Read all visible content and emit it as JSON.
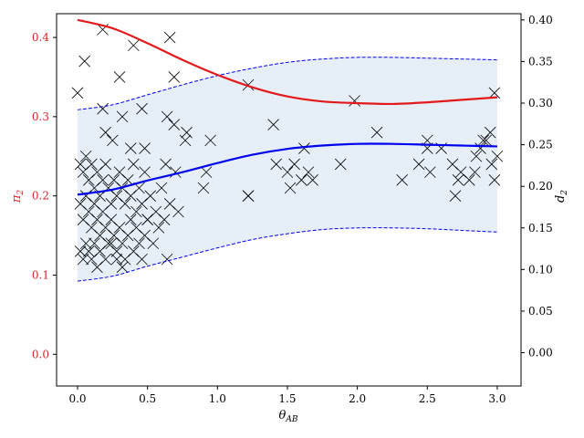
{
  "chart_data": {
    "type": "scatter",
    "xlabel": {
      "base": "θ",
      "sub": "AB"
    },
    "ylabel_left": {
      "base": "π",
      "sub": "2"
    },
    "ylabel_right": {
      "base": "d",
      "sub": "2"
    },
    "xlim": [
      -0.15,
      3.17
    ],
    "ylim_left": [
      -0.04,
      0.43
    ],
    "ylim_right": [
      -0.04,
      0.4075
    ],
    "xticks": [
      0.0,
      0.5,
      1.0,
      1.5,
      2.0,
      2.5,
      3.0
    ],
    "xtick_labels": [
      "0.0",
      "0.5",
      "1.0",
      "1.5",
      "2.0",
      "2.5",
      "3.0"
    ],
    "yticks_left": [
      0.0,
      0.1,
      0.2,
      0.3,
      0.4
    ],
    "ytick_labels_left": [
      "0.0",
      "0.1",
      "0.2",
      "0.3",
      "0.4"
    ],
    "yticks_right": [
      0.0,
      0.05,
      0.1,
      0.15,
      0.2,
      0.25,
      0.3,
      0.35,
      0.4
    ],
    "ytick_labels_right": [
      "0.00",
      "0.05",
      "0.10",
      "0.15",
      "0.20",
      "0.25",
      "0.30",
      "0.35",
      "0.40"
    ],
    "colors": {
      "left_axis": "#d62728",
      "red_line": "#e31a1c",
      "blue_line": "#0000ee",
      "band_fill": "#e6eef7",
      "marker": "#000000"
    },
    "grid": false,
    "series": [
      {
        "axis": "right",
        "kind": "line",
        "color": "red",
        "x": [
          0,
          0.25,
          0.5,
          0.75,
          1.0,
          1.25,
          1.5,
          1.75,
          2.0,
          2.25,
          2.5,
          2.75,
          3.0
        ],
        "y": [
          0.4,
          0.39,
          0.372,
          0.352,
          0.334,
          0.319,
          0.308,
          0.302,
          0.3,
          0.299,
          0.301,
          0.304,
          0.307
        ]
      },
      {
        "axis": "right",
        "kind": "line",
        "color": "blue",
        "x": [
          0,
          0.25,
          0.5,
          0.75,
          1.0,
          1.25,
          1.5,
          1.75,
          2.0,
          2.25,
          2.5,
          2.75,
          3.0
        ],
        "y": [
          0.19,
          0.196,
          0.207,
          0.217,
          0.228,
          0.238,
          0.245,
          0.249,
          0.251,
          0.251,
          0.25,
          0.249,
          0.248
        ]
      },
      {
        "axis": "right",
        "kind": "band-upper",
        "style": "dashed",
        "x": [
          0,
          0.25,
          0.5,
          0.75,
          1.0,
          1.25,
          1.5,
          1.75,
          2.0,
          2.25,
          2.5,
          2.75,
          3.0
        ],
        "y": [
          0.292,
          0.298,
          0.31,
          0.322,
          0.333,
          0.342,
          0.349,
          0.353,
          0.355,
          0.355,
          0.354,
          0.353,
          0.352
        ]
      },
      {
        "axis": "right",
        "kind": "band-lower",
        "style": "dashed",
        "x": [
          0,
          0.25,
          0.5,
          0.75,
          1.0,
          1.25,
          1.5,
          1.75,
          2.0,
          2.25,
          2.5,
          2.75,
          3.0
        ],
        "y": [
          0.086,
          0.092,
          0.104,
          0.115,
          0.126,
          0.136,
          0.143,
          0.148,
          0.15,
          0.15,
          0.149,
          0.147,
          0.145
        ]
      },
      {
        "axis": "left",
        "kind": "scatter",
        "marker": "x",
        "points": [
          [
            0.0,
            0.33
          ],
          [
            0.05,
            0.37
          ],
          [
            0.18,
            0.41
          ],
          [
            0.4,
            0.39
          ],
          [
            0.66,
            0.4
          ],
          [
            0.69,
            0.35
          ],
          [
            0.3,
            0.35
          ],
          [
            0.18,
            0.31
          ],
          [
            0.32,
            0.3
          ],
          [
            0.46,
            0.31
          ],
          [
            0.64,
            0.3
          ],
          [
            0.69,
            0.29
          ],
          [
            0.78,
            0.28
          ],
          [
            0.2,
            0.28
          ],
          [
            0.25,
            0.27
          ],
          [
            0.38,
            0.26
          ],
          [
            0.48,
            0.26
          ],
          [
            0.63,
            0.24
          ],
          [
            0.77,
            0.27
          ],
          [
            0.95,
            0.27
          ],
          [
            1.22,
            0.34
          ],
          [
            1.4,
            0.29
          ],
          [
            1.62,
            0.26
          ],
          [
            1.98,
            0.32
          ],
          [
            2.14,
            0.28
          ],
          [
            2.32,
            0.22
          ],
          [
            2.5,
            0.27
          ],
          [
            2.6,
            0.26
          ],
          [
            2.98,
            0.33
          ],
          [
            2.95,
            0.28
          ],
          [
            2.9,
            0.27
          ],
          [
            2.85,
            0.25
          ],
          [
            0.02,
            0.24
          ],
          [
            0.04,
            0.23
          ],
          [
            0.06,
            0.25
          ],
          [
            0.08,
            0.22
          ],
          [
            0.1,
            0.24
          ],
          [
            0.12,
            0.21
          ],
          [
            0.14,
            0.23
          ],
          [
            0.16,
            0.2
          ],
          [
            0.18,
            0.22
          ],
          [
            0.2,
            0.24
          ],
          [
            0.22,
            0.21
          ],
          [
            0.24,
            0.19
          ],
          [
            0.26,
            0.22
          ],
          [
            0.28,
            0.2
          ],
          [
            0.3,
            0.23
          ],
          [
            0.32,
            0.21
          ],
          [
            0.34,
            0.19
          ],
          [
            0.36,
            0.22
          ],
          [
            0.38,
            0.2
          ],
          [
            0.4,
            0.24
          ],
          [
            0.42,
            0.18
          ],
          [
            0.44,
            0.21
          ],
          [
            0.46,
            0.19
          ],
          [
            0.48,
            0.23
          ],
          [
            0.5,
            0.17
          ],
          [
            0.52,
            0.2
          ],
          [
            0.56,
            0.18
          ],
          [
            0.6,
            0.21
          ],
          [
            0.62,
            0.17
          ],
          [
            0.66,
            0.19
          ],
          [
            0.7,
            0.23
          ],
          [
            0.72,
            0.18
          ],
          [
            0.9,
            0.21
          ],
          [
            0.92,
            0.23
          ],
          [
            0.02,
            0.19
          ],
          [
            0.04,
            0.17
          ],
          [
            0.06,
            0.2
          ],
          [
            0.08,
            0.18
          ],
          [
            0.1,
            0.16
          ],
          [
            0.12,
            0.19
          ],
          [
            0.14,
            0.17
          ],
          [
            0.16,
            0.15
          ],
          [
            0.18,
            0.18
          ],
          [
            0.2,
            0.16
          ],
          [
            0.22,
            0.14
          ],
          [
            0.24,
            0.17
          ],
          [
            0.26,
            0.15
          ],
          [
            0.28,
            0.13
          ],
          [
            0.3,
            0.16
          ],
          [
            0.32,
            0.14
          ],
          [
            0.34,
            0.12
          ],
          [
            0.36,
            0.15
          ],
          [
            0.38,
            0.17
          ],
          [
            0.4,
            0.13
          ],
          [
            0.42,
            0.16
          ],
          [
            0.44,
            0.14
          ],
          [
            0.46,
            0.12
          ],
          [
            0.48,
            0.15
          ],
          [
            0.5,
            0.17
          ],
          [
            0.54,
            0.14
          ],
          [
            0.58,
            0.16
          ],
          [
            0.64,
            0.12
          ],
          [
            0.02,
            0.13
          ],
          [
            0.04,
            0.12
          ],
          [
            0.06,
            0.14
          ],
          [
            0.08,
            0.13
          ],
          [
            0.1,
            0.12
          ],
          [
            0.12,
            0.14
          ],
          [
            0.14,
            0.11
          ],
          [
            0.16,
            0.13
          ],
          [
            0.2,
            0.12
          ],
          [
            0.24,
            0.14
          ],
          [
            0.28,
            0.12
          ],
          [
            0.32,
            0.11
          ],
          [
            1.22,
            0.2
          ],
          [
            1.22,
            0.2
          ],
          [
            1.42,
            0.24
          ],
          [
            1.5,
            0.23
          ],
          [
            1.52,
            0.21
          ],
          [
            1.55,
            0.24
          ],
          [
            1.6,
            0.22
          ],
          [
            1.65,
            0.23
          ],
          [
            1.68,
            0.22
          ],
          [
            1.88,
            0.24
          ],
          [
            2.44,
            0.24
          ],
          [
            2.5,
            0.26
          ],
          [
            2.52,
            0.23
          ],
          [
            2.68,
            0.24
          ],
          [
            2.7,
            0.2
          ],
          [
            2.72,
            0.22
          ],
          [
            2.74,
            0.23
          ],
          [
            2.8,
            0.22
          ],
          [
            2.84,
            0.23
          ],
          [
            2.88,
            0.26
          ],
          [
            2.92,
            0.27
          ],
          [
            2.98,
            0.22
          ],
          [
            3.0,
            0.25
          ],
          [
            2.96,
            0.24
          ]
        ]
      }
    ]
  }
}
